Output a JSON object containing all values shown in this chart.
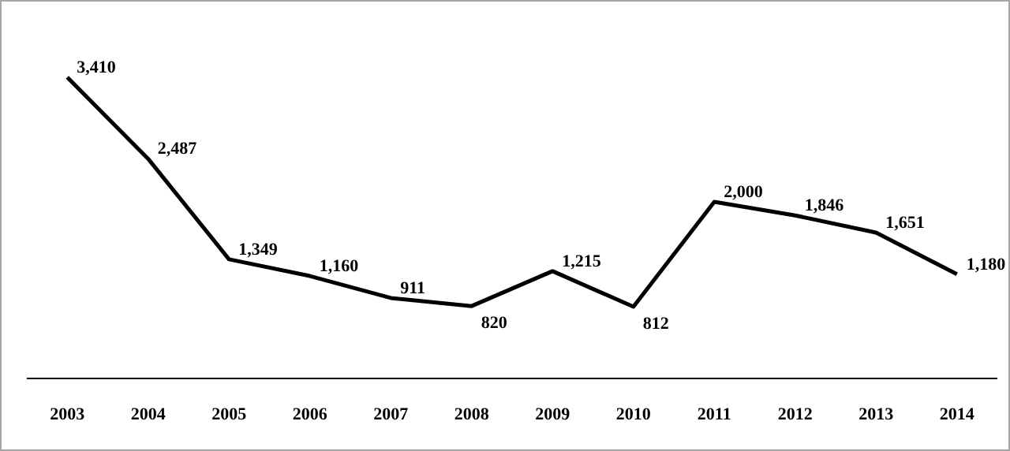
{
  "chart_data": {
    "type": "line",
    "categories": [
      "2003",
      "2004",
      "2005",
      "2006",
      "2007",
      "2008",
      "2009",
      "2010",
      "2011",
      "2012",
      "2013",
      "2014"
    ],
    "series": [
      {
        "color": "#000000",
        "values": [
          3410,
          2487,
          1349,
          1160,
          911,
          820,
          1215,
          812,
          2000,
          1846,
          1651,
          1180
        ],
        "value_labels": [
          "3,410",
          "2,487",
          "1,349",
          "1,160",
          "911",
          "820",
          "1,215",
          "812",
          "2,000",
          "1,846",
          "1,651",
          "1,180"
        ]
      }
    ],
    "tick_labels": "x",
    "line_style": "solid"
  }
}
